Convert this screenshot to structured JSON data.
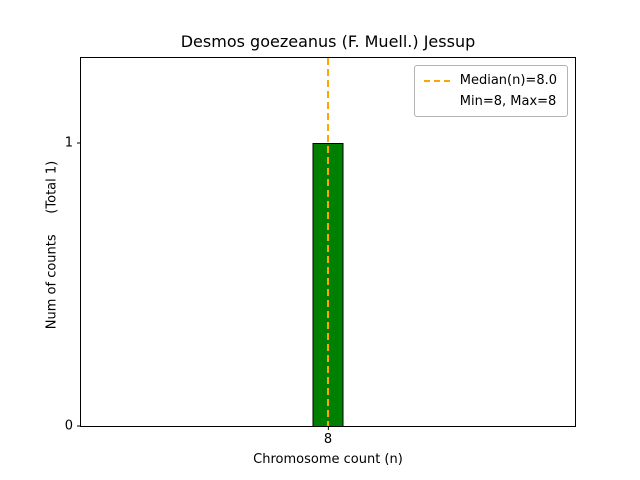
{
  "chart_data": {
    "type": "bar",
    "title": "Desmos goezeanus (F. Muell.) Jessup",
    "xlabel": "Chromosome count (n)",
    "ylabel": "Num of counts     (Total 1)",
    "categories": [
      "8"
    ],
    "values": [
      1
    ],
    "ylim": [
      0,
      1.3
    ],
    "yticks": [
      {
        "label": "0",
        "value": 0
      },
      {
        "label": "1",
        "value": 1
      }
    ],
    "xticks": [
      {
        "label": "8"
      }
    ],
    "median": 8.0,
    "min": 8,
    "max": 8,
    "bar_color": "#008000",
    "bar_edge_color": "#000000",
    "median_line_color": "#ffa500",
    "grid": false,
    "legend_position": "upper right",
    "legend": [
      {
        "label": "Median(n)=8.0",
        "swatch": "dashed-line"
      },
      {
        "label": "Min=8, Max=8",
        "swatch": "none"
      }
    ]
  }
}
